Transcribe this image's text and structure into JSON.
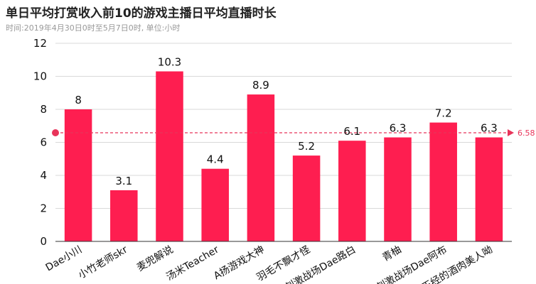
{
  "chart_data": {
    "type": "bar",
    "title": "单日平均打赏收入前10的游戏主播日平均直播时长",
    "subtitle": "时间:2019年4月30日0时至5月7日0时, 单位:小时",
    "categories": [
      "Dae小川",
      "小竹老师skr",
      "麦兜解说",
      "汤米Teacher",
      "A扬游戏大神",
      "羽毛不飘才怪",
      "刺激战场Dae路白",
      "青柚",
      "刺激战场Dae阿布",
      "正经的酒肉美人呦"
    ],
    "values": [
      8,
      3.1,
      10.3,
      4.4,
      8.9,
      5.2,
      6.1,
      6.3,
      7.2,
      6.3
    ],
    "value_labels": [
      "8",
      "3.1",
      "10.3",
      "4.4",
      "8.9",
      "5.2",
      "6.1",
      "6.3",
      "7.2",
      "6.3"
    ],
    "ylim": [
      0,
      12
    ],
    "yticks": [
      0,
      2,
      4,
      6,
      8,
      10,
      12
    ],
    "grid": true,
    "average": {
      "value": 6.58,
      "label": "6.58"
    },
    "colors": {
      "bar": "#fe1e50",
      "average": "#e8345a",
      "grid": "#d9d9d9",
      "axis": "#333333"
    }
  }
}
